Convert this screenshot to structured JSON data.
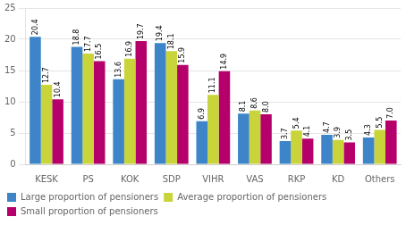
{
  "chart_data": {
    "type": "bar",
    "categories": [
      "KESK",
      "PS",
      "KOK",
      "SDP",
      "VIHR",
      "VAS",
      "RKP",
      "KD",
      "Others"
    ],
    "series": [
      {
        "name": "Large proportion of pensioners",
        "color": "#3d85c8",
        "values": [
          20.4,
          18.8,
          13.6,
          19.4,
          6.9,
          8.1,
          3.7,
          4.7,
          4.3
        ]
      },
      {
        "name": "Average proportion of pensioners",
        "color": "#c8d43a",
        "values": [
          12.7,
          17.7,
          16.9,
          18.1,
          11.1,
          8.6,
          5.4,
          3.9,
          5.5
        ]
      },
      {
        "name": "Small proportion of pensioners",
        "color": "#b5006b",
        "values": [
          10.4,
          16.5,
          19.7,
          15.9,
          14.9,
          8.0,
          4.1,
          3.5,
          7.0
        ],
        "value_labels": [
          "10.4",
          "16.5",
          "19.7",
          "15.9",
          "14.9",
          "8.0",
          "4.1",
          "3.5",
          "7.0"
        ]
      }
    ],
    "ylim": [
      0,
      25
    ],
    "yticks": [
      0,
      5,
      10,
      15,
      20,
      25
    ],
    "grid": true,
    "legend": "bottom",
    "data_labels": true
  }
}
